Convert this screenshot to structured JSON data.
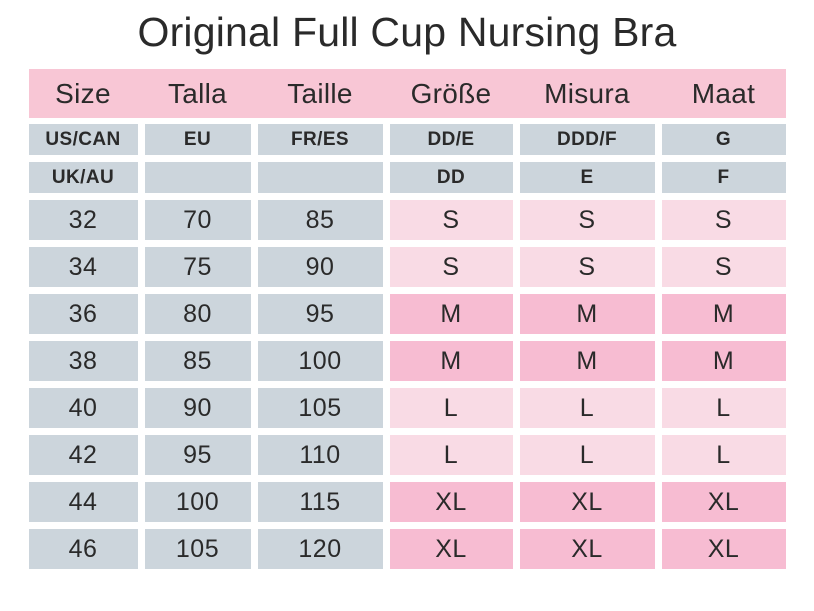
{
  "title": "Original Full Cup Nursing Bra",
  "chart_data": {
    "type": "table",
    "title": "Original Full Cup Nursing Bra",
    "columns": [
      "Size",
      "Talla",
      "Taille",
      "Größe",
      "Misura",
      "Maat"
    ],
    "region_rows": [
      {
        "cells": [
          "US/CAN",
          "EU",
          "FR/ES",
          "DD/E",
          "DDD/F",
          "G"
        ]
      },
      {
        "cells": [
          "UK/AU",
          "",
          "",
          "DD",
          "E",
          "F"
        ]
      }
    ],
    "size_rows": [
      {
        "cells": [
          "32",
          "70",
          "85",
          "S",
          "S",
          "S"
        ],
        "shade": "light"
      },
      {
        "cells": [
          "34",
          "75",
          "90",
          "S",
          "S",
          "S"
        ],
        "shade": "light"
      },
      {
        "cells": [
          "36",
          "80",
          "95",
          "M",
          "M",
          "M"
        ],
        "shade": "dark"
      },
      {
        "cells": [
          "38",
          "85",
          "100",
          "M",
          "M",
          "M"
        ],
        "shade": "dark"
      },
      {
        "cells": [
          "40",
          "90",
          "105",
          "L",
          "L",
          "L"
        ],
        "shade": "light"
      },
      {
        "cells": [
          "42",
          "95",
          "110",
          "L",
          "L",
          "L"
        ],
        "shade": "light"
      },
      {
        "cells": [
          "44",
          "100",
          "115",
          "XL",
          "XL",
          "XL"
        ],
        "shade": "dark"
      },
      {
        "cells": [
          "46",
          "105",
          "120",
          "XL",
          "XL",
          "XL"
        ],
        "shade": "dark"
      }
    ],
    "layout": {
      "gray_columns": [
        0,
        1,
        2
      ],
      "pink_columns": [
        3,
        4,
        5
      ],
      "grid": "off",
      "cell_gutter_white": true
    }
  },
  "colors": {
    "header_pink": "#f8c6d5",
    "gray_cell": "#ccd5dc",
    "light_pink_cell": "#f9dbe5",
    "dark_pink_cell": "#f7bcd2",
    "text": "#2a2a2a",
    "background": "#ffffff"
  }
}
